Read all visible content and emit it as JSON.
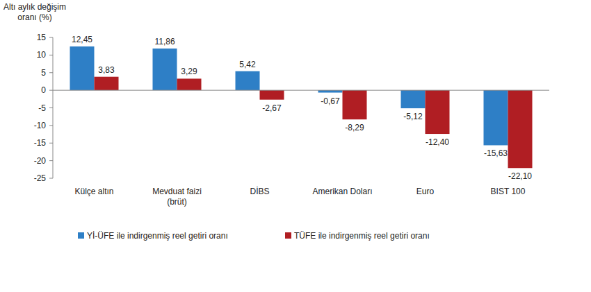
{
  "chart_data": {
    "type": "bar",
    "y_label": "Altı aylık değişim oranı (%)",
    "categories": [
      "Külçe altın",
      "Mevduat faizi (brüt)",
      "DİBS",
      "Amerikan Doları",
      "Euro",
      "BIST 100"
    ],
    "series": [
      {
        "name": "Yİ-ÜFE ile indirgenmiş reel getiri oranı",
        "color": "#2e7fc6",
        "values": [
          12.45,
          11.86,
          5.42,
          -0.67,
          -5.12,
          -15.63
        ],
        "value_labels": [
          "12,45",
          "11,86",
          "5,42",
          "-0,67",
          "-5,12",
          "-15,63"
        ]
      },
      {
        "name": "TÜFE ile indirgenmiş reel getiri oranı",
        "color": "#b01e23",
        "values": [
          3.83,
          3.29,
          -2.67,
          -8.29,
          -12.4,
          -22.1
        ],
        "value_labels": [
          "3,83",
          "3,29",
          "-2,67",
          "-8,29",
          "-12,40",
          "-22,10"
        ]
      }
    ],
    "ylim": [
      -25,
      15
    ],
    "yticks": [
      -25,
      -20,
      -15,
      -10,
      -5,
      0,
      5,
      10,
      15
    ],
    "grid": false,
    "legend": "bottom",
    "data_labels": true
  }
}
